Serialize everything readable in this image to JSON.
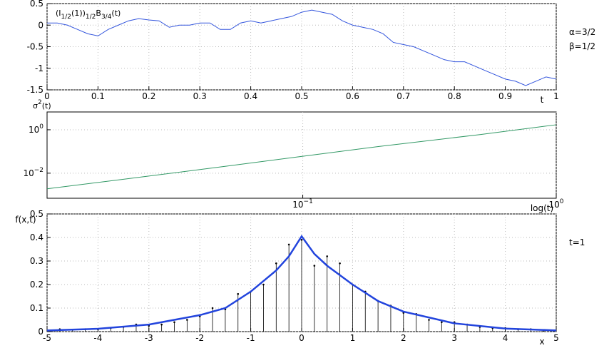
{
  "chart_data": [
    {
      "type": "line",
      "annotation_parts": [
        "(I",
        "1/2",
        "(1))",
        "1/2",
        "B",
        "3/4",
        "(t)"
      ],
      "xlabel": "t",
      "side_texts": [
        "α=3/2",
        "β=1/2"
      ],
      "color": "#3355dd",
      "grid": true,
      "x": [
        0,
        0.02,
        0.04,
        0.06,
        0.08,
        0.1,
        0.12,
        0.14,
        0.16,
        0.18,
        0.2,
        0.22,
        0.24,
        0.26,
        0.28,
        0.3,
        0.32,
        0.34,
        0.36,
        0.38,
        0.4,
        0.42,
        0.44,
        0.46,
        0.48,
        0.5,
        0.52,
        0.54,
        0.56,
        0.58,
        0.6,
        0.62,
        0.64,
        0.66,
        0.68,
        0.7,
        0.72,
        0.74,
        0.76,
        0.78,
        0.8,
        0.82,
        0.84,
        0.86,
        0.88,
        0.9,
        0.92,
        0.94,
        0.96,
        0.98,
        1
      ],
      "values": [
        0.05,
        0.05,
        0.0,
        -0.1,
        -0.2,
        -0.25,
        -0.1,
        0.0,
        0.1,
        0.15,
        0.12,
        0.1,
        -0.05,
        0.0,
        0.0,
        0.05,
        0.05,
        -0.1,
        -0.1,
        0.05,
        0.1,
        0.05,
        0.1,
        0.15,
        0.2,
        0.3,
        0.35,
        0.3,
        0.25,
        0.1,
        0.0,
        -0.05,
        -0.1,
        -0.2,
        -0.4,
        -0.45,
        -0.5,
        -0.6,
        -0.7,
        -0.8,
        -0.85,
        -0.85,
        -0.95,
        -1.05,
        -1.15,
        -1.25,
        -1.3,
        -1.4,
        -1.3,
        -1.2,
        -1.25
      ],
      "xlim": [
        0,
        1
      ],
      "xticks": [
        0,
        0.1,
        0.2,
        0.3,
        0.4,
        0.5,
        0.6,
        0.7,
        0.8,
        0.9,
        1
      ],
      "ylim": [
        -1.5,
        0.5
      ],
      "yticks": [
        0.5,
        0,
        -0.5,
        -1,
        -1.5
      ]
    },
    {
      "type": "line",
      "ylabel_parts": [
        "σ",
        "2",
        "(t)"
      ],
      "xlabel": "log(t)",
      "color": "#339966",
      "grid": true,
      "log_x": true,
      "log_y": true,
      "x": [
        0.0098,
        0.02,
        0.05,
        0.1,
        0.2,
        0.5,
        1
      ],
      "values": [
        0.0019,
        0.0054,
        0.021,
        0.06,
        0.17,
        0.6,
        1.7
      ],
      "xlim": [
        0.0098,
        1
      ],
      "xticks": [
        {
          "value": 0.1,
          "label": "10",
          "exponent": "−1"
        },
        {
          "value": 1,
          "label": "10",
          "exponent": "0"
        }
      ],
      "ylim": [
        0.0007,
        6.6
      ],
      "yticks": [
        {
          "value": 1,
          "label": "10",
          "exponent": "0"
        },
        {
          "value": 0.01,
          "label": "10",
          "exponent": "−2"
        }
      ]
    },
    {
      "type": "stem",
      "ylabel": "f(x,t)",
      "xlabel": "x",
      "side_texts": [
        "t=1"
      ],
      "grid": true,
      "xlim": [
        -5,
        5
      ],
      "xticks": [
        -5,
        -4,
        -3,
        -2,
        -1,
        0,
        1,
        2,
        3,
        4,
        5
      ],
      "ylim": [
        0,
        0.5
      ],
      "yticks": [
        0,
        0.1,
        0.2,
        0.3,
        0.4,
        0.5
      ],
      "series": [
        {
          "type": "stem",
          "color": "#000000",
          "x": [
            -4.75,
            -4.5,
            -4.25,
            -4,
            -3.75,
            -3.5,
            -3.25,
            -3,
            -2.75,
            -2.5,
            -2.25,
            -2,
            -1.75,
            -1.5,
            -1.25,
            -1,
            -0.75,
            -0.5,
            -0.25,
            0,
            0.25,
            0.5,
            0.75,
            1,
            1.25,
            1.5,
            1.75,
            2,
            2.25,
            2.5,
            2.75,
            3,
            3.25,
            3.5,
            3.75,
            4,
            4.25,
            4.5,
            4.75
          ],
          "values": [
            0.01,
            0.008,
            0.01,
            0.01,
            0.015,
            0.02,
            0.03,
            0.025,
            0.03,
            0.04,
            0.05,
            0.065,
            0.1,
            0.095,
            0.16,
            0.17,
            0.2,
            0.29,
            0.37,
            0.39,
            0.28,
            0.32,
            0.29,
            0.2,
            0.17,
            0.13,
            0.11,
            0.08,
            0.075,
            0.05,
            0.04,
            0.04,
            0.03,
            0.02,
            0.015,
            0.015,
            0.01,
            0.01,
            0.005
          ]
        },
        {
          "type": "line",
          "color": "#2244dd",
          "x": [
            -5,
            -4,
            -3,
            -2,
            -1.5,
            -1,
            -0.5,
            -0.25,
            0,
            0.25,
            0.5,
            1,
            1.5,
            2,
            3,
            4,
            5
          ],
          "values": [
            0.005,
            0.012,
            0.03,
            0.07,
            0.1,
            0.17,
            0.26,
            0.32,
            0.405,
            0.33,
            0.28,
            0.2,
            0.13,
            0.085,
            0.035,
            0.013,
            0.005
          ]
        }
      ]
    }
  ]
}
